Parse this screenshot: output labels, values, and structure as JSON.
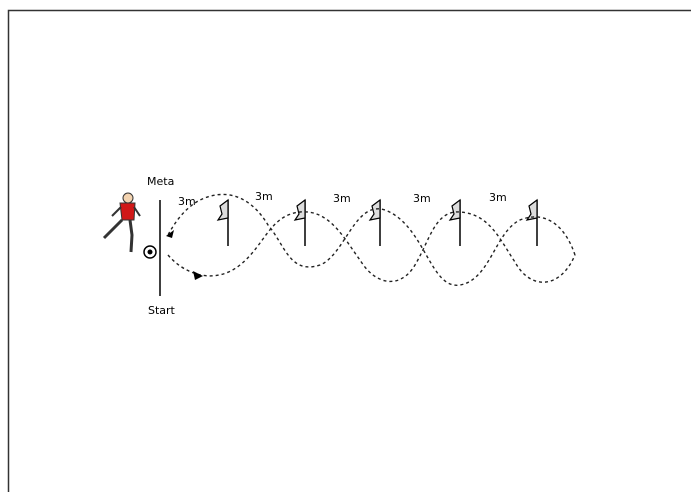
{
  "labels": {
    "meta": "Meta",
    "start": "Start",
    "distances": [
      "3m",
      "3m",
      "3m",
      "3m",
      "3m"
    ]
  }
}
